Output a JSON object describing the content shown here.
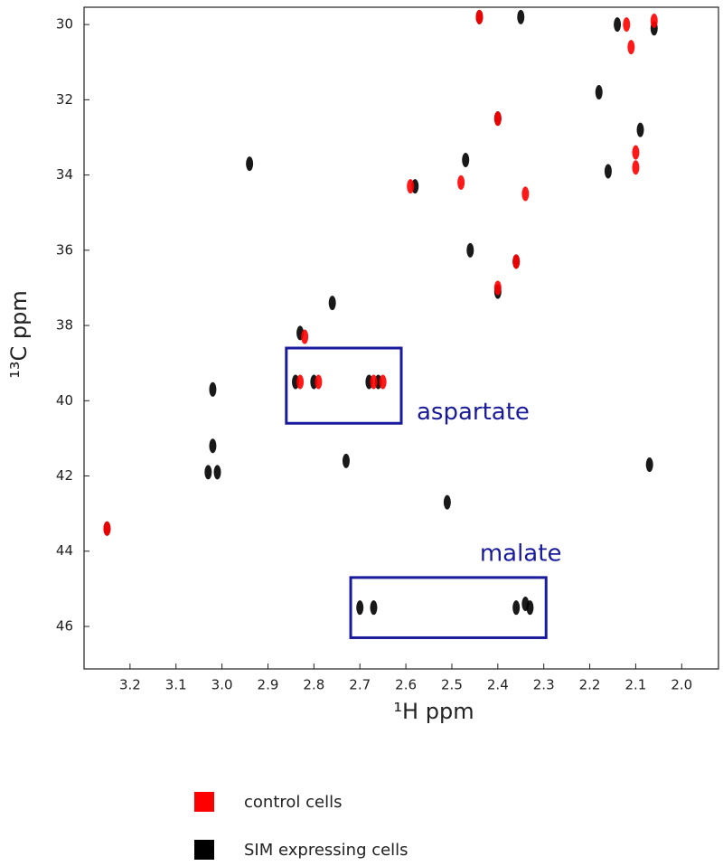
{
  "chart_data": {
    "type": "scatter",
    "xlabel": "¹H  ppm",
    "ylabel": "¹³C  ppm",
    "xlim": [
      3.3,
      1.92
    ],
    "ylim": [
      47.13,
      29.54
    ],
    "xticks": [
      3.2,
      3.1,
      {
        "value": 3,
        "label": "3.0"
      },
      2.9,
      2.8,
      2.7,
      2.6,
      2.5,
      2.4,
      2.3,
      2.2,
      2.1,
      {
        "value": 2,
        "label": "2.0"
      }
    ],
    "yticks": [
      30,
      32,
      34,
      36,
      38,
      40,
      42,
      44,
      46
    ],
    "series": [
      {
        "name": "SIM expressing cells",
        "color": "#000000",
        "x": [
          2.35,
          2.44,
          2.58,
          2.47,
          2.36,
          2.4,
          2.4,
          2.09,
          2.18,
          2.94,
          2.76,
          2.46,
          3.02,
          3.02,
          3.03,
          3.01,
          2.73,
          2.51,
          3.25,
          2.83,
          2.84,
          2.8,
          2.68,
          2.66,
          2.7,
          2.67,
          2.36,
          2.34,
          2.33,
          2.16,
          2.07,
          2.06,
          2.14
        ],
        "y": [
          29.8,
          29.8,
          34.3,
          33.6,
          36.3,
          37.1,
          32.5,
          32.8,
          31.8,
          33.7,
          37.4,
          36.0,
          39.7,
          41.2,
          41.9,
          41.9,
          41.6,
          42.7,
          43.4,
          38.2,
          39.5,
          39.5,
          39.5,
          39.5,
          45.5,
          45.5,
          45.5,
          45.4,
          45.5,
          33.9,
          41.7,
          30.1,
          30.0
        ]
      },
      {
        "name": "control cells",
        "color": "#ff0000",
        "x": [
          2.44,
          2.12,
          2.06,
          2.11,
          2.48,
          2.59,
          2.4,
          2.34,
          2.36,
          2.4,
          2.1,
          2.1,
          2.82,
          2.83,
          2.79,
          2.67,
          2.65,
          3.25
        ],
        "y": [
          29.8,
          30.0,
          29.9,
          30.6,
          34.2,
          34.3,
          32.5,
          34.5,
          36.3,
          37.0,
          33.4,
          33.8,
          38.3,
          39.5,
          39.5,
          39.5,
          39.5,
          43.4
        ]
      }
    ],
    "annotations": [
      {
        "text": "aspartate",
        "xrange": [
          2.86,
          2.61
        ],
        "yrange": [
          38.6,
          40.6
        ]
      },
      {
        "text": "malate",
        "xrange": [
          2.72,
          2.295
        ],
        "yrange": [
          44.7,
          46.3
        ]
      }
    ]
  }
}
